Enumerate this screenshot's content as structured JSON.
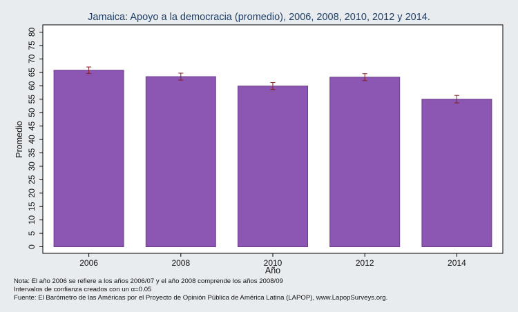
{
  "title": "Jamaica: Apoyo a la democracia (promedio), 2006, 2008, 2010, 2012 y 2014.",
  "chart_data": {
    "type": "bar",
    "categories": [
      "2006",
      "2008",
      "2010",
      "2012",
      "2014"
    ],
    "values": [
      65.8,
      63.4,
      59.9,
      63.2,
      55.0
    ],
    "error_low": [
      64.6,
      62.1,
      58.6,
      61.9,
      53.6
    ],
    "error_high": [
      67.0,
      64.7,
      61.2,
      64.5,
      56.4
    ],
    "ylabel": "Promedio",
    "xlabel": "Año",
    "ylim": [
      0,
      80
    ],
    "yticks": [
      0,
      5,
      10,
      15,
      20,
      25,
      30,
      35,
      40,
      45,
      50,
      55,
      60,
      65,
      70,
      75,
      80
    ],
    "grid": false,
    "bar_color": "#8c57b2",
    "error_bar_color": "#8b1a1a"
  },
  "notes": [
    "Nota: El año 2006 se refiere a los años 2006/07 y el año 2008 comprende los años 2008/09",
    "Intervalos de confianza creados con un α=0.05",
    "Fuente: El Barómetro de las Américas por el Proyecto de Opinión Pública de América Latina (LAPOP), www.LapopSurveys.org."
  ]
}
